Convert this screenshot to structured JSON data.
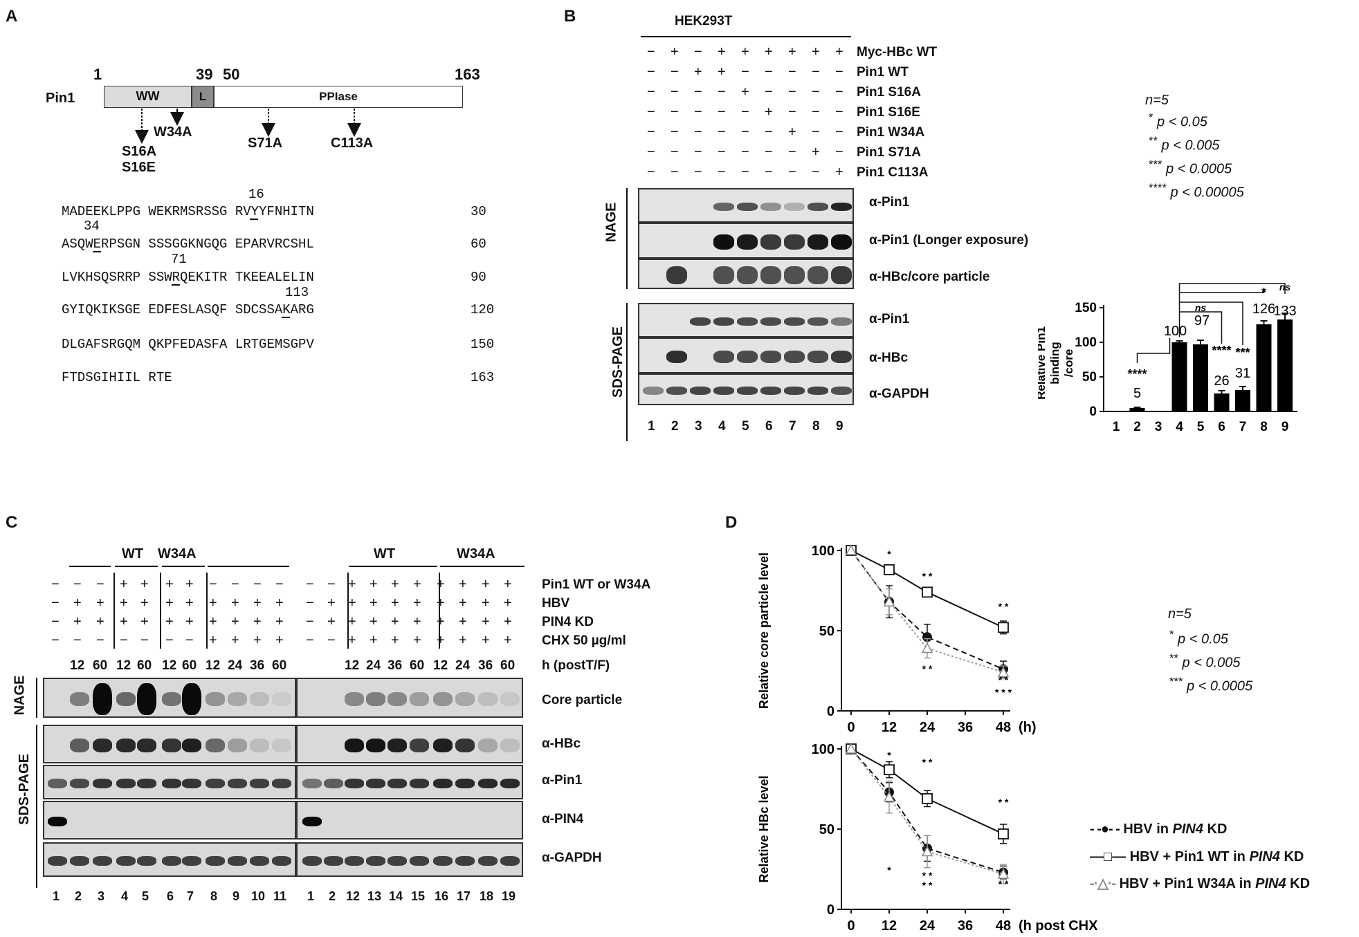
{
  "panelA": {
    "label": "A",
    "protein": "Pin1",
    "positions": [
      "1",
      "39",
      "50",
      "163"
    ],
    "domains": [
      "WW",
      "L",
      "PPIase"
    ],
    "mutations": [
      "S16A",
      "S16E",
      "W34A",
      "S71A",
      "C113A"
    ],
    "sequence": [
      {
        "text": "MADEEKLPPG WEKRMSRSSG RVYYFNHITN",
        "num": "30",
        "marker": "16"
      },
      {
        "text": "ASQWERPSGN SSSGGKNGQG EPARVRCSHL",
        "num": "60",
        "marker": "34"
      },
      {
        "text": "LVKHSQSRRP SSWRQEKITR TKEEALELIN",
        "num": "90",
        "marker": "71"
      },
      {
        "text": "GYIQKIKSGE EDFESLASQF SDCSSAKARG",
        "num": "120",
        "marker": "113"
      },
      {
        "text": "DLGAFSRGQM QKPFEDASFA LRTGEMSGPV",
        "num": "150",
        "marker": ""
      },
      {
        "text": "FTDSGIHIIL RTE",
        "num": "163",
        "marker": ""
      }
    ]
  },
  "panelB": {
    "label": "B",
    "cell": "HEK293T",
    "rows": [
      {
        "label": "Myc-HBc  WT",
        "signs": [
          "−",
          "+",
          "−",
          "+",
          "+",
          "+",
          "+",
          "+",
          "+"
        ]
      },
      {
        "label": "Pin1 WT",
        "signs": [
          "−",
          "−",
          "+",
          "+",
          "−",
          "−",
          "−",
          "−",
          "−"
        ]
      },
      {
        "label": "Pin1 S16A",
        "signs": [
          "−",
          "−",
          "−",
          "−",
          "+",
          "−",
          "−",
          "−",
          "−"
        ]
      },
      {
        "label": "Pin1 S16E",
        "signs": [
          "−",
          "−",
          "−",
          "−",
          "−",
          "+",
          "−",
          "−",
          "−"
        ]
      },
      {
        "label": "Pin1 W34A",
        "signs": [
          "−",
          "−",
          "−",
          "−",
          "−",
          "−",
          "+",
          "−",
          "−"
        ]
      },
      {
        "label": "Pin1 S71A",
        "signs": [
          "−",
          "−",
          "−",
          "−",
          "−",
          "−",
          "−",
          "+",
          "−"
        ]
      },
      {
        "label": "Pin1 C113A",
        "signs": [
          "−",
          "−",
          "−",
          "−",
          "−",
          "−",
          "−",
          "−",
          "+"
        ]
      }
    ],
    "gels": {
      "nage": "NAGE",
      "sds": "SDS-PAGE"
    },
    "blots": [
      "α-Pin1",
      "α-Pin1 (Longer exposure)",
      "α-HBc/core particle",
      "α-Pin1",
      "α-HBc",
      "α-GAPDH"
    ],
    "lanes": [
      "1",
      "2",
      "3",
      "4",
      "5",
      "6",
      "7",
      "8",
      "9"
    ],
    "stats": {
      "n": "n=5",
      "p1": "p < 0.05",
      "p2": "p < 0.005",
      "p3": "p < 0.0005",
      "p4": "p < 0.00005"
    }
  },
  "chart_data": [
    {
      "type": "bar",
      "categories": [
        "1",
        "2",
        "3",
        "4",
        "5",
        "6",
        "7",
        "8",
        "9"
      ],
      "values": [
        0,
        5,
        0,
        100,
        97,
        26,
        31,
        126,
        133
      ],
      "errors": [
        0,
        1,
        0,
        2,
        6,
        4,
        5,
        5,
        9
      ],
      "data_labels": [
        "",
        "5",
        "",
        "100",
        "97",
        "26",
        "31",
        "126",
        "133"
      ],
      "ylabel": "Relative Pin1 binding /core particle",
      "ylim": [
        0,
        150
      ],
      "yticks": [
        "0",
        "50",
        "100",
        "150"
      ],
      "significance": {
        "2": "****",
        "5": "ns",
        "6": "****",
        "7": "***",
        "8": "*",
        "9": "ns"
      },
      "bar_color": "#000000"
    },
    {
      "type": "line",
      "x": [
        0,
        12,
        24,
        48
      ],
      "xticks": [
        "0",
        "12",
        "24",
        "36",
        "48"
      ],
      "xlabel": "(h)",
      "ylabel": "Relative core particle level",
      "ylim": [
        0,
        100
      ],
      "yticks": [
        "0",
        "50",
        "100"
      ],
      "series": [
        {
          "name": "HBV  in PIN4 KD",
          "values": [
            100,
            68,
            46,
            26
          ],
          "errors": [
            0,
            10,
            8,
            5
          ]
        },
        {
          "name": "HBV + Pin1 WT in PIN4 KD",
          "values": [
            100,
            88,
            74,
            52
          ],
          "errors": [
            0,
            2,
            3,
            4
          ]
        },
        {
          "name": "HBV + Pin1 W34A in PIN4 KD",
          "values": [
            100,
            68,
            39,
            24
          ],
          "errors": [
            0,
            8,
            6,
            4
          ]
        }
      ]
    },
    {
      "type": "line",
      "x": [
        0,
        12,
        24,
        48
      ],
      "xticks": [
        "0",
        "12",
        "24",
        "36",
        "48"
      ],
      "xlabel": "(h post CHX )",
      "ylabel": "Relative HBc level",
      "ylim": [
        0,
        100
      ],
      "yticks": [
        "0",
        "50",
        "100"
      ],
      "series": [
        {
          "name": "HBV  in PIN4 KD",
          "values": [
            100,
            73,
            38,
            23
          ],
          "errors": [
            0,
            6,
            8,
            4
          ]
        },
        {
          "name": "HBV + Pin1 WT in PIN4 KD",
          "values": [
            100,
            87,
            69,
            47
          ],
          "errors": [
            0,
            5,
            5,
            6
          ]
        },
        {
          "name": "HBV + Pin1 W34A in PIN4 KD",
          "values": [
            100,
            70,
            36,
            22
          ],
          "errors": [
            0,
            10,
            10,
            6
          ]
        }
      ]
    }
  ],
  "panelC": {
    "label": "C",
    "groups": [
      "WT",
      "W34A",
      "WT",
      "W34A"
    ],
    "rows": [
      {
        "label": "Pin1 WT or W34A",
        "left": [
          "−",
          "−",
          "−",
          "+",
          "+",
          "+",
          "+",
          "−",
          "−",
          "−",
          "−"
        ],
        "right": [
          "−",
          "−",
          "+",
          "+",
          "+",
          "+",
          "+",
          "+",
          "+",
          "+"
        ]
      },
      {
        "label": "HBV",
        "left": [
          "−",
          "+",
          "+",
          "+",
          "+",
          "+",
          "+",
          "+",
          "+",
          "+",
          "+"
        ],
        "right": [
          "−",
          "+",
          "+",
          "+",
          "+",
          "+",
          "+",
          "+",
          "+",
          "+"
        ]
      },
      {
        "label": "PIN4 KD",
        "left": [
          "−",
          "+",
          "+",
          "+",
          "+",
          "+",
          "+",
          "+",
          "+",
          "+",
          "+"
        ],
        "right": [
          "−",
          "+",
          "+",
          "+",
          "+",
          "+",
          "+",
          "+",
          "+",
          "+"
        ]
      },
      {
        "label": "CHX 50 µg/ml",
        "left": [
          "−",
          "−",
          "−",
          "−",
          "−",
          "−",
          "−",
          "+",
          "+",
          "+",
          "+"
        ],
        "right": [
          "−",
          "−",
          "+",
          "+",
          "+",
          "+",
          "+",
          "+",
          "+",
          "+"
        ]
      }
    ],
    "times_left": [
      "12",
      "60",
      "12",
      "60",
      "12",
      "60",
      "12",
      "24",
      "36",
      "60"
    ],
    "times_right": [
      "12",
      "24",
      "36",
      "60",
      "12",
      "24",
      "36",
      "60"
    ],
    "time_label": "h (postT/F)",
    "gels": {
      "nage": "NAGE",
      "sds": "SDS-PAGE"
    },
    "blots": [
      "Core particle",
      "α-HBc",
      "α-Pin1",
      "α-PIN4",
      "α-GAPDH"
    ],
    "lanes_left": [
      "1",
      "2",
      "3",
      "4",
      "5",
      "6",
      "7",
      "8",
      "9",
      "10",
      "11"
    ],
    "lanes_right": [
      "1",
      "2",
      "12",
      "13",
      "14",
      "15",
      "16",
      "17",
      "18",
      "19"
    ]
  },
  "panelD": {
    "label": "D",
    "stats": {
      "n": "n=5",
      "p1": "p < 0.05",
      "p2": "p < 0.005",
      "p3": "p < 0.0005"
    },
    "legend": [
      {
        "pre": "HBV  in ",
        "ital": "PIN4",
        "post": " KD"
      },
      {
        "pre": "HBV + Pin1 WT in ",
        "ital": "PIN4",
        "post": " KD"
      },
      {
        "pre": "HBV + Pin1 W34A in ",
        "ital": "PIN4",
        "post": " KD"
      }
    ]
  }
}
